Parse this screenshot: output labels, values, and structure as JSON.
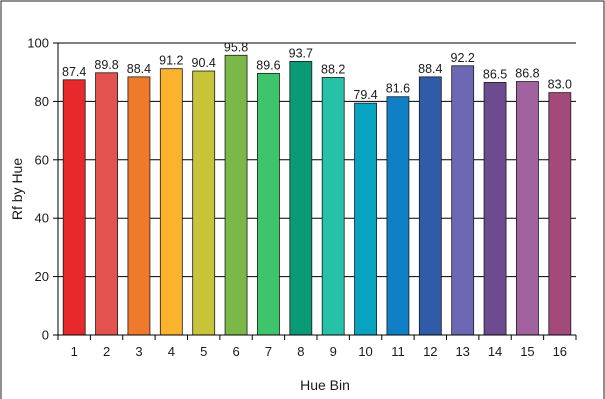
{
  "chart_data": {
    "type": "bar",
    "xlabel": "Hue Bin",
    "ylabel": "Rf by Hue",
    "ylim": [
      0,
      100
    ],
    "yticks": [
      0,
      20,
      40,
      60,
      80,
      100
    ],
    "grid": true,
    "categories": [
      "1",
      "2",
      "3",
      "4",
      "5",
      "6",
      "7",
      "8",
      "9",
      "10",
      "11",
      "12",
      "13",
      "14",
      "15",
      "16"
    ],
    "values": [
      87.4,
      89.8,
      88.4,
      91.2,
      90.4,
      95.8,
      89.6,
      93.7,
      88.2,
      79.4,
      81.6,
      88.4,
      92.2,
      86.5,
      86.8,
      83.0
    ],
    "data_labels": [
      "87.4",
      "89.8",
      "88.4",
      "91.2",
      "90.4",
      "95.8",
      "89.6",
      "93.7",
      "88.2",
      "79.4",
      "81.6",
      "88.4",
      "92.2",
      "86.5",
      "86.8",
      "83.0"
    ],
    "bar_colors": [
      "#e8292c",
      "#e3524f",
      "#f07a2c",
      "#fbb22c",
      "#c7c43a",
      "#7ab848",
      "#3fc46b",
      "#0b9a76",
      "#25c2a7",
      "#08a3c1",
      "#0f7fc6",
      "#2f5ba8",
      "#6d68b4",
      "#6c4b8f",
      "#a262a0",
      "#a44a7b"
    ],
    "frame_color": "#222222",
    "grid_color": "#000000"
  }
}
